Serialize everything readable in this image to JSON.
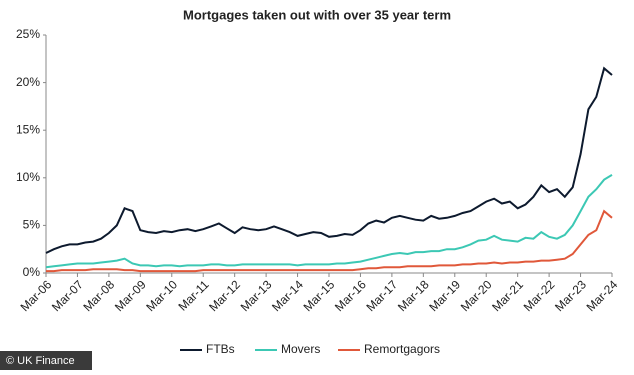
{
  "chart_data": {
    "type": "line",
    "title": "Mortgages taken out with over 35 year term",
    "categories": [
      "Mar-06",
      null,
      null,
      null,
      "Mar-07",
      null,
      null,
      null,
      "Mar-08",
      null,
      null,
      null,
      "Mar-09",
      null,
      null,
      null,
      "Mar-10",
      null,
      null,
      null,
      "Mar-11",
      null,
      null,
      null,
      "Mar-12",
      null,
      null,
      null,
      "Mar-13",
      null,
      null,
      null,
      "Mar-14",
      null,
      null,
      null,
      "Mar-15",
      null,
      null,
      null,
      "Mar-16",
      null,
      null,
      null,
      "Mar-17",
      null,
      null,
      null,
      "Mar-18",
      null,
      null,
      null,
      "Mar-19",
      null,
      null,
      null,
      "Mar-20",
      null,
      null,
      null,
      "Mar-21",
      null,
      null,
      null,
      "Mar-22",
      null,
      null,
      null,
      "Mar-23",
      null,
      null,
      null,
      "Mar-24"
    ],
    "series": [
      {
        "name": "FTBs",
        "color": "#0d1a2e",
        "values": [
          2.1,
          2.5,
          2.8,
          3.0,
          3.0,
          3.2,
          3.3,
          3.6,
          4.2,
          5.0,
          6.8,
          6.5,
          4.5,
          4.3,
          4.2,
          4.4,
          4.3,
          4.5,
          4.6,
          4.4,
          4.6,
          4.9,
          5.2,
          4.7,
          4.2,
          4.8,
          4.6,
          4.5,
          4.6,
          4.9,
          4.6,
          4.3,
          3.9,
          4.1,
          4.3,
          4.2,
          3.8,
          3.9,
          4.1,
          4.0,
          4.5,
          5.2,
          5.5,
          5.3,
          5.8,
          6.0,
          5.8,
          5.6,
          5.5,
          6.0,
          5.7,
          5.8,
          6.0,
          6.3,
          6.5,
          7.0,
          7.5,
          7.8,
          7.3,
          7.5,
          6.8,
          7.2,
          8.0,
          9.2,
          8.5,
          8.8,
          8.0,
          9.0,
          12.5,
          17.2,
          18.5,
          21.5,
          20.8
        ]
      },
      {
        "name": "Movers",
        "color": "#3cc8b4",
        "values": [
          0.6,
          0.7,
          0.8,
          0.9,
          1.0,
          1.0,
          1.0,
          1.1,
          1.2,
          1.3,
          1.5,
          1.0,
          0.8,
          0.8,
          0.7,
          0.8,
          0.8,
          0.7,
          0.8,
          0.8,
          0.8,
          0.9,
          0.9,
          0.8,
          0.8,
          0.9,
          0.9,
          0.9,
          0.9,
          0.9,
          0.9,
          0.9,
          0.8,
          0.9,
          0.9,
          0.9,
          0.9,
          1.0,
          1.0,
          1.1,
          1.2,
          1.4,
          1.6,
          1.8,
          2.0,
          2.1,
          2.0,
          2.2,
          2.2,
          2.3,
          2.3,
          2.5,
          2.5,
          2.7,
          3.0,
          3.4,
          3.5,
          3.9,
          3.5,
          3.4,
          3.3,
          3.7,
          3.6,
          4.3,
          3.8,
          3.6,
          4.0,
          5.0,
          6.5,
          8.0,
          8.8,
          9.8,
          10.3
        ]
      },
      {
        "name": "Remortgagors",
        "color": "#e0583a",
        "values": [
          0.2,
          0.2,
          0.3,
          0.3,
          0.3,
          0.3,
          0.4,
          0.4,
          0.4,
          0.4,
          0.3,
          0.3,
          0.2,
          0.2,
          0.2,
          0.2,
          0.2,
          0.2,
          0.2,
          0.2,
          0.3,
          0.3,
          0.3,
          0.3,
          0.3,
          0.3,
          0.3,
          0.3,
          0.3,
          0.3,
          0.3,
          0.3,
          0.3,
          0.3,
          0.3,
          0.3,
          0.3,
          0.3,
          0.3,
          0.3,
          0.4,
          0.5,
          0.5,
          0.6,
          0.6,
          0.6,
          0.7,
          0.7,
          0.7,
          0.7,
          0.8,
          0.8,
          0.8,
          0.9,
          0.9,
          1.0,
          1.0,
          1.1,
          1.0,
          1.1,
          1.1,
          1.2,
          1.2,
          1.3,
          1.3,
          1.4,
          1.5,
          2.0,
          3.0,
          4.0,
          4.5,
          6.5,
          5.8
        ]
      }
    ],
    "ylim": [
      0,
      25
    ],
    "yticks": [
      {
        "value": 0,
        "label": "0%"
      },
      {
        "value": 5,
        "label": "5%"
      },
      {
        "value": 10,
        "label": "10%"
      },
      {
        "value": 15,
        "label": "15%"
      },
      {
        "value": 20,
        "label": "20%"
      },
      {
        "value": 25,
        "label": "25%"
      }
    ],
    "source": "© UK Finance"
  }
}
